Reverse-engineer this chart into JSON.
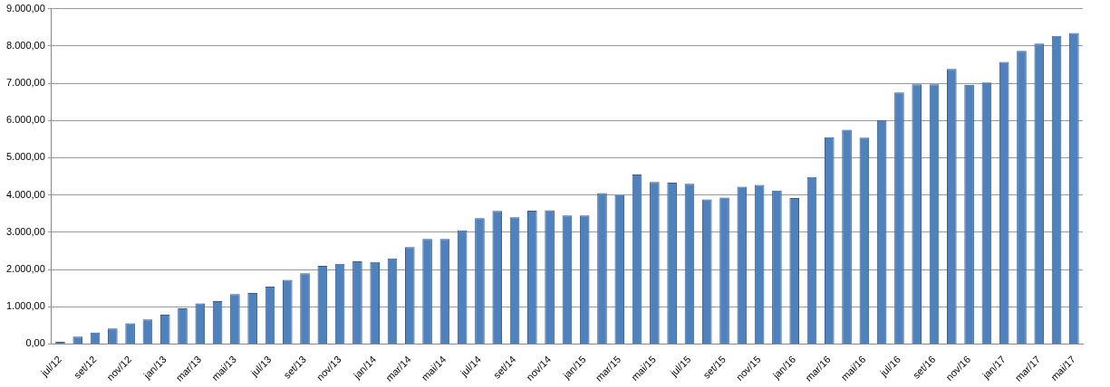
{
  "chart_data": {
    "type": "bar",
    "categories": [
      "jul/12",
      null,
      "set/12",
      null,
      "nov/12",
      null,
      "jan/13",
      null,
      "mar/13",
      null,
      "mai/13",
      null,
      "jul/13",
      null,
      "set/13",
      null,
      "nov/13",
      null,
      "jan/14",
      null,
      "mar/14",
      null,
      "mai/14",
      null,
      "jul/14",
      null,
      "set/14",
      null,
      "nov/14",
      null,
      "jan/15",
      null,
      "mar/15",
      null,
      "mai/15",
      null,
      "jul/15",
      null,
      "set/15",
      null,
      "nov/15",
      null,
      "jan/16",
      null,
      "mar/16",
      null,
      "mai/16",
      null,
      "jul/16",
      null,
      "set/16",
      null,
      "nov/16",
      null,
      "jan/17",
      null,
      "mar/17",
      null,
      "mai/17"
    ],
    "values": [
      60,
      200,
      310,
      420,
      560,
      660,
      790,
      960,
      1090,
      1150,
      1340,
      1370,
      1540,
      1720,
      1900,
      2100,
      2150,
      2220,
      2200,
      2300,
      2600,
      2820,
      2820,
      3050,
      3380,
      3570,
      3400,
      3580,
      3590,
      3450,
      3450,
      4050,
      4000,
      4550,
      4350,
      4330,
      4300,
      3880,
      3930,
      4220,
      4270,
      4120,
      3920,
      4480,
      5550,
      5750,
      5540,
      6010,
      6750,
      6970,
      6970,
      7380,
      6960,
      7020,
      7570,
      7870,
      8060,
      8270,
      8350
    ],
    "color": "#4f81bd",
    "ylim": [
      0,
      9000
    ],
    "yticks": [
      {
        "value": 0,
        "label": "0,00"
      },
      {
        "value": 1000,
        "label": "1.000,00"
      },
      {
        "value": 2000,
        "label": "2.000,00"
      },
      {
        "value": 3000,
        "label": "3.000,00"
      },
      {
        "value": 4000,
        "label": "4.000,00"
      },
      {
        "value": 5000,
        "label": "5.000,00"
      },
      {
        "value": 6000,
        "label": "6.000,00"
      },
      {
        "value": 7000,
        "label": "7.000,00"
      },
      {
        "value": 8000,
        "label": "8.000,00"
      },
      {
        "value": 9000,
        "label": "9.000,00"
      }
    ],
    "grid": "y"
  }
}
